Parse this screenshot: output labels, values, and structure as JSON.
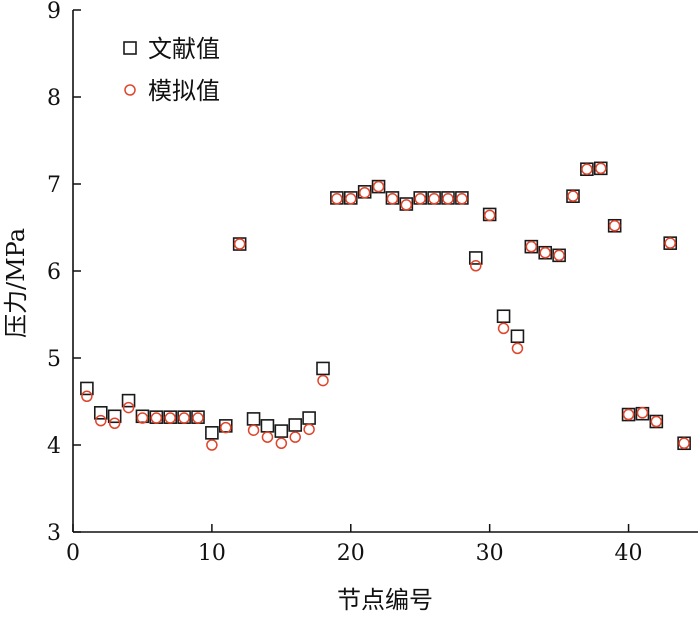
{
  "chart_data": {
    "type": "scatter",
    "xlabel": "节点编号",
    "ylabel": "压力/MPa",
    "xlim": [
      0,
      45
    ],
    "ylim": [
      3,
      9
    ],
    "x_ticks": [
      0,
      10,
      20,
      30,
      40
    ],
    "y_ticks": [
      3,
      4,
      5,
      6,
      7,
      8,
      9
    ],
    "grid": false,
    "legend_position": "top-left",
    "series": [
      {
        "name": "文献值",
        "marker": "square",
        "color": "#1a1a1a",
        "points": [
          [
            1,
            4.65
          ],
          [
            2,
            4.37
          ],
          [
            3,
            4.33
          ],
          [
            4,
            4.51
          ],
          [
            5,
            4.33
          ],
          [
            6,
            4.32
          ],
          [
            7,
            4.32
          ],
          [
            8,
            4.32
          ],
          [
            9,
            4.32
          ],
          [
            10,
            4.14
          ],
          [
            11,
            4.22
          ],
          [
            12,
            6.31
          ],
          [
            13,
            4.3
          ],
          [
            14,
            4.22
          ],
          [
            15,
            4.16
          ],
          [
            16,
            4.23
          ],
          [
            17,
            4.31
          ],
          [
            18,
            4.88
          ],
          [
            19,
            6.84
          ],
          [
            20,
            6.84
          ],
          [
            21,
            6.91
          ],
          [
            22,
            6.97
          ],
          [
            23,
            6.84
          ],
          [
            24,
            6.77
          ],
          [
            25,
            6.84
          ],
          [
            26,
            6.84
          ],
          [
            27,
            6.84
          ],
          [
            28,
            6.84
          ],
          [
            29,
            6.15
          ],
          [
            30,
            6.65
          ],
          [
            31,
            5.48
          ],
          [
            32,
            5.25
          ],
          [
            33,
            6.28
          ],
          [
            34,
            6.21
          ],
          [
            35,
            6.18
          ],
          [
            36,
            6.86
          ],
          [
            37,
            7.17
          ],
          [
            38,
            7.18
          ],
          [
            39,
            6.52
          ],
          [
            40,
            4.35
          ],
          [
            41,
            4.36
          ],
          [
            42,
            4.27
          ],
          [
            43,
            6.32
          ],
          [
            44,
            4.02
          ]
        ]
      },
      {
        "name": "模拟值",
        "marker": "circle",
        "color": "#e0452b",
        "points": [
          [
            1,
            4.56
          ],
          [
            2,
            4.28
          ],
          [
            3,
            4.25
          ],
          [
            4,
            4.43
          ],
          [
            5,
            4.31
          ],
          [
            6,
            4.31
          ],
          [
            7,
            4.31
          ],
          [
            8,
            4.31
          ],
          [
            9,
            4.31
          ],
          [
            10,
            4.0
          ],
          [
            11,
            4.2
          ],
          [
            12,
            6.31
          ],
          [
            13,
            4.17
          ],
          [
            14,
            4.09
          ],
          [
            15,
            4.02
          ],
          [
            16,
            4.09
          ],
          [
            17,
            4.18
          ],
          [
            18,
            4.74
          ],
          [
            19,
            6.83
          ],
          [
            20,
            6.83
          ],
          [
            21,
            6.9
          ],
          [
            22,
            6.97
          ],
          [
            23,
            6.83
          ],
          [
            24,
            6.76
          ],
          [
            25,
            6.83
          ],
          [
            26,
            6.83
          ],
          [
            27,
            6.83
          ],
          [
            28,
            6.83
          ],
          [
            29,
            6.06
          ],
          [
            30,
            6.64
          ],
          [
            31,
            5.34
          ],
          [
            32,
            5.11
          ],
          [
            33,
            6.28
          ],
          [
            34,
            6.21
          ],
          [
            35,
            6.18
          ],
          [
            36,
            6.86
          ],
          [
            37,
            7.17
          ],
          [
            38,
            7.18
          ],
          [
            39,
            6.52
          ],
          [
            40,
            4.35
          ],
          [
            41,
            4.37
          ],
          [
            42,
            4.27
          ],
          [
            43,
            6.32
          ],
          [
            44,
            4.02
          ]
        ]
      }
    ]
  }
}
